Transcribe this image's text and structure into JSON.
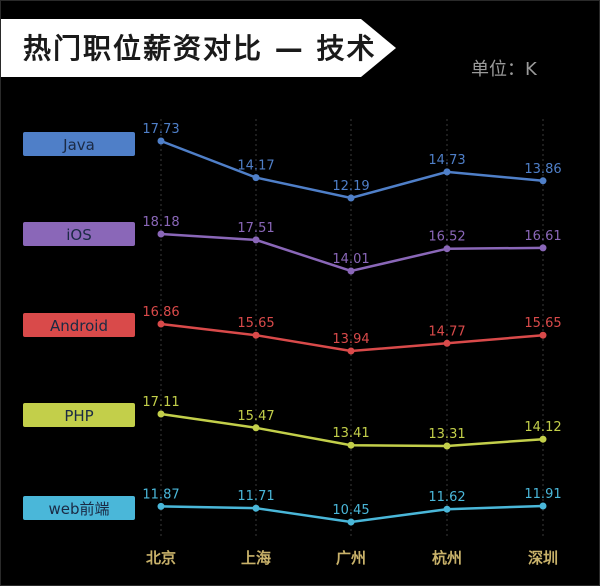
{
  "title": "热门职位薪资对比 — 技术",
  "unit": "单位：K",
  "chart_data": {
    "type": "line",
    "categories": [
      "北京",
      "上海",
      "广州",
      "杭州",
      "深圳"
    ],
    "grid": true,
    "legend_placement": "left",
    "series": [
      {
        "name": "Java",
        "color": "#4f7fc8",
        "values": [
          17.73,
          14.17,
          12.19,
          14.73,
          13.86
        ]
      },
      {
        "name": "iOS",
        "color": "#8a67b8",
        "values": [
          18.18,
          17.51,
          14.01,
          16.52,
          16.61
        ]
      },
      {
        "name": "Android",
        "color": "#d94a4a",
        "values": [
          16.86,
          15.65,
          13.94,
          14.77,
          15.65
        ]
      },
      {
        "name": "PHP",
        "color": "#c3cf4a",
        "values": [
          17.11,
          15.47,
          13.41,
          13.31,
          14.12
        ]
      },
      {
        "name": "web前端",
        "color": "#4ab7d9",
        "values": [
          11.87,
          11.71,
          10.45,
          11.62,
          11.91
        ]
      }
    ]
  },
  "colors": {
    "background": "#000000",
    "banner": "#ffffff",
    "grid": "#3a3a3a",
    "category_label": "#c9b26a"
  }
}
